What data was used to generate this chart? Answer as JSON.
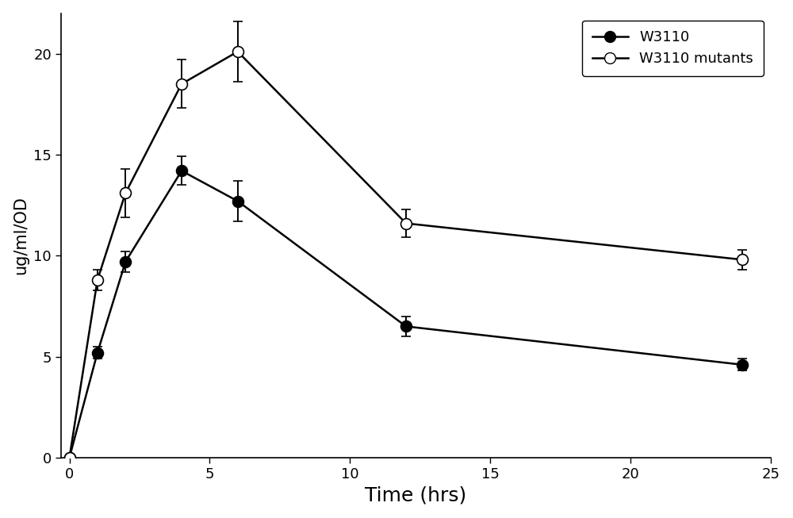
{
  "title": "",
  "xlabel": "Time (hrs)",
  "ylabel": "ug/ml/OD",
  "xlim": [
    -0.3,
    25
  ],
  "ylim": [
    0,
    22
  ],
  "xticks": [
    0,
    5,
    10,
    15,
    20,
    25
  ],
  "yticks": [
    0,
    5,
    10,
    15,
    20
  ],
  "w3110": {
    "x": [
      0,
      1,
      2,
      4,
      6,
      12,
      24
    ],
    "y": [
      0.0,
      5.2,
      9.7,
      14.2,
      12.7,
      6.5,
      4.6
    ],
    "yerr": [
      0.0,
      0.3,
      0.5,
      0.7,
      1.0,
      0.5,
      0.3
    ],
    "label": "W3110",
    "markerfacecolor": "black",
    "markeredgecolor": "black",
    "color": "black",
    "markersize": 10
  },
  "w3110_mutants": {
    "x": [
      0,
      1,
      2,
      4,
      6,
      12,
      24
    ],
    "y": [
      0.0,
      8.8,
      13.1,
      18.5,
      20.1,
      11.6,
      9.8
    ],
    "yerr": [
      0.0,
      0.5,
      1.2,
      1.2,
      1.5,
      0.7,
      0.5
    ],
    "label": "W3110 mutants",
    "markerfacecolor": "white",
    "markeredgecolor": "black",
    "color": "black",
    "markersize": 10
  },
  "background_color": "#ffffff",
  "axes_background": "#ffffff",
  "linewidth": 1.8,
  "elinewidth": 1.4,
  "capsize": 4,
  "capthick": 1.4,
  "xlabel_fontsize": 18,
  "ylabel_fontsize": 15,
  "tick_fontsize": 13,
  "legend_fontsize": 13
}
